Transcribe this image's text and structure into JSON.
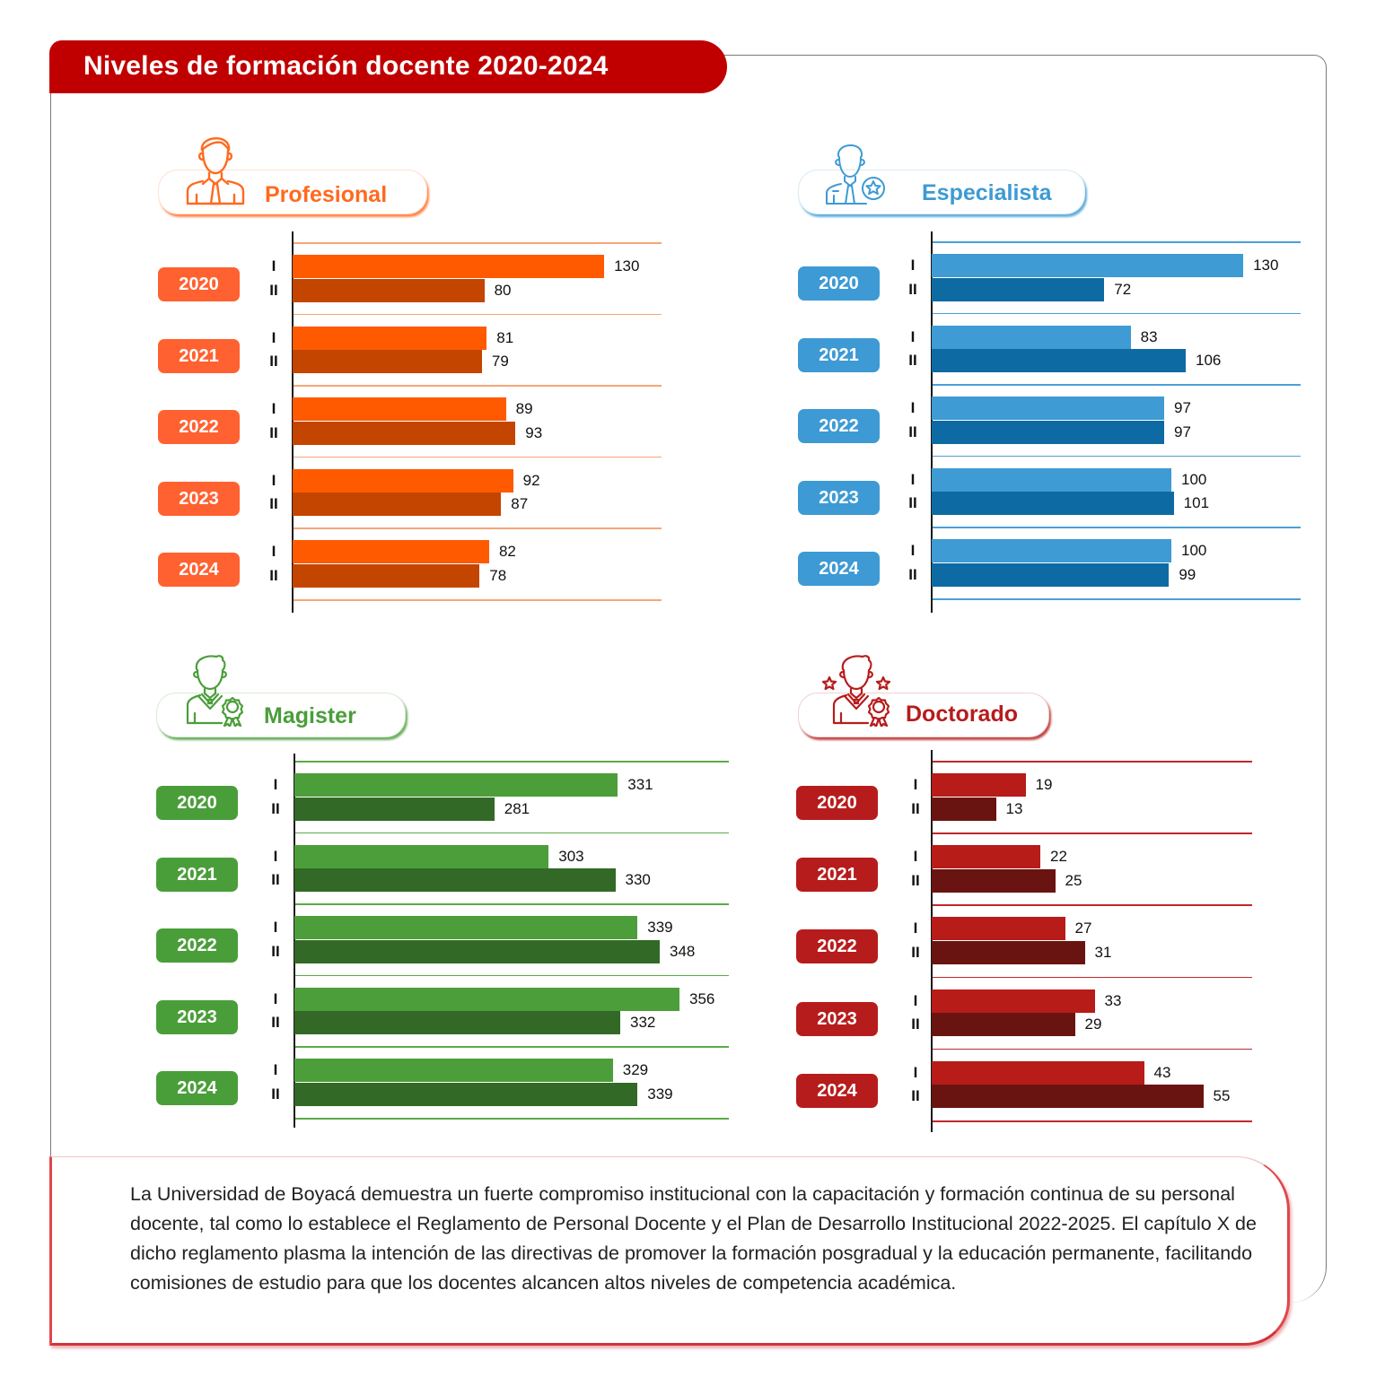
{
  "header": {
    "title": "Niveles de formación docente 2020-2024"
  },
  "colors": {
    "header_red": "#c00000",
    "profesional": {
      "accent": "#ff6a1f",
      "pill": "#ff6130",
      "bar_I": "#ff5a00",
      "bar_II": "#c44500",
      "grid": "#f5a677"
    },
    "especialista": {
      "accent": "#3d9ad4",
      "pill": "#3d9ad4",
      "bar_I": "#3e9bd4",
      "bar_II": "#0e6aa3",
      "grid": "#4aa0d6"
    },
    "magister": {
      "accent": "#4a9e3a",
      "pill": "#4a9e3a",
      "bar_I": "#4c9e3a",
      "bar_II": "#336926",
      "grid": "#5aab48"
    },
    "doctorado": {
      "accent": "#b71c1c",
      "pill": "#b71c1c",
      "bar_I": "#b71c18",
      "bar_II": "#6a1412",
      "grid": "#c0272d"
    }
  },
  "semesters": [
    "I",
    "II"
  ],
  "chart_data": [
    {
      "type": "bar",
      "orientation": "horizontal",
      "title": "Profesional",
      "icon": "professional-person-icon",
      "categories": [
        "2020",
        "2021",
        "2022",
        "2023",
        "2024"
      ],
      "series": [
        {
          "name": "I",
          "values": [
            130,
            81,
            89,
            92,
            82
          ]
        },
        {
          "name": "II",
          "values": [
            80,
            79,
            93,
            87,
            78
          ]
        }
      ],
      "xlim": [
        0,
        155
      ],
      "grid": true
    },
    {
      "type": "bar",
      "orientation": "horizontal",
      "title": "Especialista",
      "icon": "specialist-person-star-icon",
      "categories": [
        "2020",
        "2021",
        "2022",
        "2023",
        "2024"
      ],
      "series": [
        {
          "name": "I",
          "values": [
            130,
            83,
            97,
            100,
            100
          ]
        },
        {
          "name": "II",
          "values": [
            72,
            106,
            97,
            101,
            99
          ]
        }
      ],
      "xlim": [
        0,
        155
      ],
      "grid": true
    },
    {
      "type": "bar",
      "orientation": "horizontal",
      "title": "Magister",
      "icon": "magister-graduate-medal-icon",
      "categories": [
        "2020",
        "2021",
        "2022",
        "2023",
        "2024"
      ],
      "series": [
        {
          "name": "I",
          "values": [
            331,
            303,
            339,
            356,
            329
          ]
        },
        {
          "name": "II",
          "values": [
            281,
            330,
            348,
            332,
            339
          ]
        }
      ],
      "xlim": [
        200,
        377
      ],
      "grid": true
    },
    {
      "type": "bar",
      "orientation": "horizontal",
      "title": "Doctorado",
      "icon": "doctorate-graduate-stars-icon",
      "categories": [
        "2020",
        "2021",
        "2022",
        "2023",
        "2024"
      ],
      "series": [
        {
          "name": "I",
          "values": [
            19,
            22,
            27,
            33,
            43
          ]
        },
        {
          "name": "II",
          "values": [
            13,
            25,
            31,
            29,
            55
          ]
        }
      ],
      "xlim": [
        0,
        65
      ],
      "grid": true
    }
  ],
  "description": "La Universidad de Boyacá demuestra un fuerte compromiso institucional con la  capacitación y formación continua de su personal docente, tal como lo establece el  Reglamento de Personal Docente y el Plan de Desarrollo Institucional 2022-2025. El  capítulo X de dicho reglamento plasma la intención de las directivas de promover la  formación posgradual y la educación permanente, facilitando comisiones de estudio  para que los docentes alcancen altos niveles de competencia académica."
}
